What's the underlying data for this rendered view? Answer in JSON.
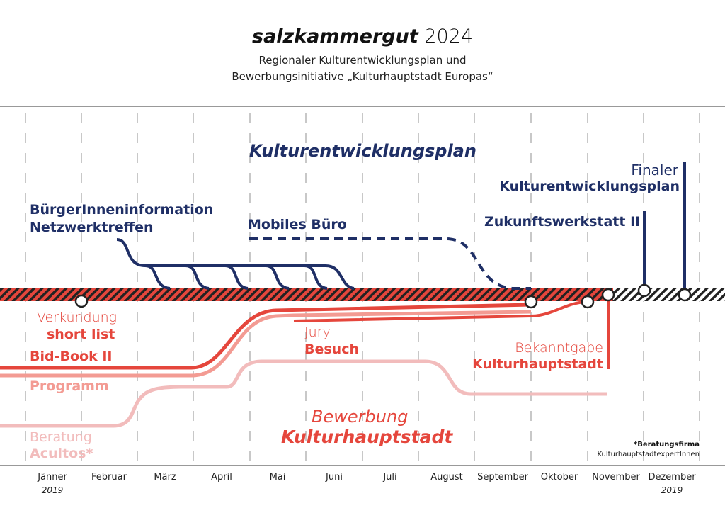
{
  "header": {
    "title_bold": "salzkammergut",
    "title_year": "2024",
    "subtitle_line1": "Regionaler Kulturentwicklungsplan und",
    "subtitle_line2": "Bewerbungsinitiative „Kulturhauptstadt Europas“"
  },
  "upper": {
    "heading": "Kulturentwicklungsplan",
    "buergerinfo": "BürgerInneninformation",
    "netzwerk": "Netzwerktreffen",
    "mobiles": "Mobiles Büro",
    "zukunft": "Zukunftswerkstatt II",
    "finaler": "Finaler",
    "finaler2": "Kulturentwicklungsplan"
  },
  "lower": {
    "verkuendung": "Verkündung",
    "shortlist": "short list",
    "bidbook": "Bid-Book II",
    "programm": "Programm",
    "beratung": "Beratung",
    "acultos": "Acultos*",
    "jury": "Jury",
    "besuch": "Besuch",
    "bekanntgabe": "Bekanntgabe",
    "khs": "Kulturhauptstadt",
    "bewerbung": "Bewerbung",
    "bewerbung2": "Kulturhauptstadt",
    "footnote1": "*Beratungsfirma",
    "footnote2": "KulturhauptstadtexpertInnen"
  },
  "months": [
    "Jänner",
    "Februar",
    "März",
    "April",
    "Mai",
    "Juni",
    "Juli",
    "August",
    "September",
    "Oktober",
    "November",
    "Dezember"
  ],
  "years": {
    "start": "2019",
    "end": "2019"
  },
  "colors": {
    "navy": "#1f2f66",
    "red": "#e5463c",
    "pink": "#f39b93",
    "pale": "#f2bcbc",
    "stripe_dark": "#222222"
  }
}
